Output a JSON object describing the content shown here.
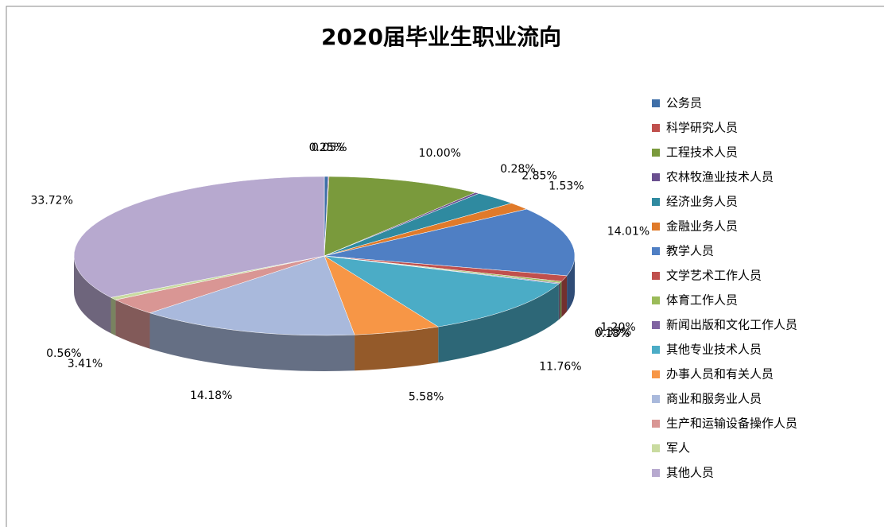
{
  "chart_data": {
    "type": "pie",
    "title": "2020届毕业生职业流向",
    "categories": [
      "公务员",
      "科学研究人员",
      "工程技术人员",
      "农林牧渔业技术人员",
      "经济业务人员",
      "金融业务人员",
      "教学人员",
      "文学艺术工作人员",
      "体育工作人员",
      "新闻出版和文化工作人员",
      "其他专业技术人员",
      "办事人员和有关人员",
      "商业和服务业人员",
      "生产和运输设备操作人员",
      "军人",
      "其他人员"
    ],
    "values": [
      0.25,
      0.05,
      10.0,
      0.28,
      2.85,
      1.53,
      14.01,
      1.2,
      0.33,
      0.18,
      11.76,
      5.58,
      14.18,
      3.41,
      0.56,
      33.72
    ],
    "value_labels": [
      "0.25%",
      "0.05%",
      "10.00%",
      "0.28%",
      "2.85%",
      "1.53%",
      "14.01%",
      "1.20%",
      "0.33%",
      "0.18%",
      "11.76%",
      "5.58%",
      "14.18%",
      "3.41%",
      "0.56%",
      "33.72%"
    ],
    "colors": [
      "#3f6fa8",
      "#c0504d",
      "#7a9a3c",
      "#6a4f8f",
      "#2f8aa0",
      "#e07a2a",
      "#4f7fc4",
      "#c0504d",
      "#9bbb59",
      "#8064a2",
      "#4bacc6",
      "#f79646",
      "#a9b9dc",
      "#d99694",
      "#c9dba0",
      "#b7a9cf"
    ],
    "legend": "right"
  }
}
